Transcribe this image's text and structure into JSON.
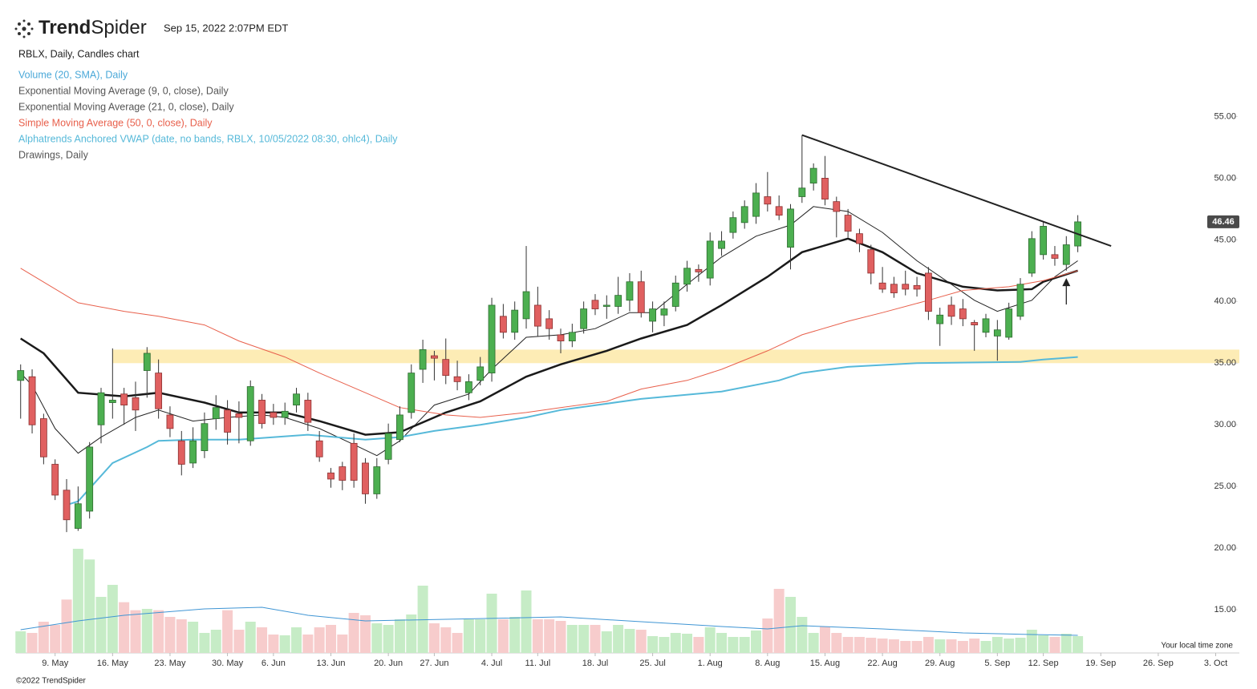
{
  "header": {
    "brand_bold": "Trend",
    "brand_regular": "Spider",
    "timestamp": "Sep 15, 2022 2:07PM EDT",
    "footer": "©2022 TrendSpider"
  },
  "chart_data": {
    "type": "candlestick",
    "subtitle": "RBLX, Daily, Candles chart",
    "timezone_note": "Your local time zone",
    "xlim": [
      -0.4,
      105.5
    ],
    "ylim": [
      11.5,
      63.8
    ],
    "volume_lim": [
      0,
      60
    ],
    "xticks": [
      {
        "value": 3,
        "label": "9. May"
      },
      {
        "value": 8,
        "label": "16. May"
      },
      {
        "value": 13,
        "label": "23. May"
      },
      {
        "value": 18,
        "label": "30. May"
      },
      {
        "value": 22,
        "label": "6. Jun"
      },
      {
        "value": 27,
        "label": "13. Jun"
      },
      {
        "value": 32,
        "label": "20. Jun"
      },
      {
        "value": 36,
        "label": "27. Jun"
      },
      {
        "value": 41,
        "label": "4. Jul"
      },
      {
        "value": 45,
        "label": "11. Jul"
      },
      {
        "value": 50,
        "label": "18. Jul"
      },
      {
        "value": 55,
        "label": "25. Jul"
      },
      {
        "value": 60,
        "label": "1. Aug"
      },
      {
        "value": 65,
        "label": "8. Aug"
      },
      {
        "value": 70,
        "label": "15. Aug"
      },
      {
        "value": 75,
        "label": "22. Aug"
      },
      {
        "value": 80,
        "label": "29. Aug"
      },
      {
        "value": 85,
        "label": "5. Sep"
      },
      {
        "value": 89,
        "label": "12. Sep"
      },
      {
        "value": 94,
        "label": "19. Sep"
      },
      {
        "value": 99,
        "label": "26. Sep"
      },
      {
        "value": 104,
        "label": "3. Oct"
      }
    ],
    "yticks": [
      {
        "value": 55,
        "label": "55.00"
      },
      {
        "value": 50,
        "label": "50.00"
      },
      {
        "value": 45,
        "label": "45.00"
      },
      {
        "value": 40,
        "label": "40.00"
      },
      {
        "value": 35,
        "label": "35.00"
      },
      {
        "value": 30,
        "label": "30.00"
      },
      {
        "value": 25,
        "label": "25.00"
      },
      {
        "value": 20,
        "label": "20.00"
      },
      {
        "value": 15,
        "label": "15.00"
      }
    ],
    "up_color": "#4caf50",
    "down_color": "#e06060",
    "up_volume_color": "#c6ecc6",
    "down_volume_color": "#f7cccc",
    "open": [
      33.6,
      33.9,
      30.5,
      26.8,
      24.7,
      21.6,
      23.0,
      30.0,
      31.8,
      32.5,
      32.2,
      34.4,
      34.2,
      30.8,
      28.7,
      26.9,
      27.9,
      30.5,
      31.2,
      30.9,
      28.7,
      32.0,
      31.0,
      30.6,
      31.6,
      32.0,
      28.7,
      26.1,
      26.6,
      28.5,
      26.9,
      24.4,
      27.2,
      28.8,
      31.0,
      34.5,
      35.6,
      35.3,
      33.9,
      32.6,
      33.6,
      34.2,
      38.8,
      37.5,
      38.6,
      39.7,
      38.6,
      37.3,
      36.8,
      37.8,
      40.1,
      39.6,
      39.6,
      40.1,
      41.6,
      38.4,
      38.9,
      39.6,
      41.4,
      42.6,
      41.9,
      44.3,
      45.6,
      46.4,
      46.9,
      48.5,
      47.7,
      44.4,
      48.5,
      49.6,
      50.0,
      48.1,
      47.0,
      45.5,
      44.2,
      41.5,
      41.4,
      41.4,
      41.3,
      42.3,
      38.2,
      39.7,
      39.4,
      38.3,
      37.5,
      37.2,
      37.1,
      38.8,
      42.3,
      43.8,
      43.8,
      43.0,
      44.5
    ],
    "high": [
      34.9,
      34.5,
      30.9,
      27.2,
      25.6,
      25.0,
      28.6,
      33.0,
      36.2,
      33.0,
      33.5,
      36.3,
      35.3,
      31.5,
      29.5,
      29.8,
      31.0,
      32.4,
      32.0,
      31.9,
      33.6,
      32.5,
      31.7,
      31.8,
      33.0,
      32.6,
      29.5,
      26.5,
      27.0,
      29.3,
      27.3,
      27.3,
      30.1,
      31.5,
      34.9,
      36.9,
      36.0,
      37.0,
      35.2,
      34.1,
      35.5,
      40.3,
      39.8,
      40.0,
      44.5,
      41.2,
      39.3,
      37.8,
      38.2,
      40.0,
      40.6,
      40.5,
      42.0,
      42.3,
      42.5,
      40.0,
      40.0,
      42.1,
      43.3,
      43.0,
      45.6,
      45.7,
      47.3,
      48.2,
      49.6,
      50.5,
      48.6,
      47.9,
      53.5,
      51.2,
      51.8,
      48.5,
      47.5,
      45.9,
      44.6,
      42.8,
      42.0,
      42.5,
      42.0,
      42.8,
      39.5,
      40.4,
      40.2,
      38.5,
      39.0,
      38.5,
      39.9,
      41.9,
      45.7,
      46.5,
      44.5,
      45.3,
      47.0
    ],
    "low": [
      30.5,
      29.3,
      26.8,
      23.9,
      21.3,
      21.4,
      22.4,
      28.5,
      30.5,
      30.0,
      29.5,
      32.2,
      30.5,
      29.0,
      25.9,
      26.5,
      27.3,
      29.6,
      28.4,
      28.5,
      28.3,
      29.7,
      30.0,
      30.0,
      31.0,
      29.5,
      27.0,
      24.9,
      24.7,
      24.9,
      23.6,
      24.0,
      26.8,
      28.6,
      30.5,
      33.4,
      33.6,
      33.3,
      32.8,
      32.0,
      33.2,
      33.5,
      37.0,
      36.9,
      37.8,
      37.2,
      36.9,
      35.8,
      36.3,
      37.4,
      38.9,
      38.6,
      39.0,
      39.2,
      38.7,
      37.5,
      38.0,
      39.2,
      40.8,
      41.6,
      41.3,
      43.7,
      45.1,
      45.9,
      46.3,
      47.3,
      46.6,
      42.6,
      48.0,
      49.0,
      47.8,
      45.2,
      45.2,
      44.0,
      41.4,
      40.7,
      40.3,
      40.5,
      40.4,
      38.5,
      36.4,
      38.1,
      38.0,
      36.0,
      37.1,
      35.2,
      36.9,
      38.5,
      42.0,
      43.4,
      42.9,
      42.5,
      44.0
    ],
    "close": [
      34.4,
      30.0,
      27.4,
      24.3,
      22.3,
      23.6,
      28.2,
      32.6,
      32.0,
      31.6,
      31.2,
      35.8,
      31.3,
      29.7,
      26.8,
      28.7,
      30.1,
      31.4,
      29.4,
      30.6,
      33.1,
      30.1,
      30.6,
      31.1,
      32.5,
      30.2,
      27.4,
      25.6,
      25.5,
      25.5,
      24.4,
      26.6,
      29.3,
      30.8,
      34.2,
      36.1,
      35.4,
      34.0,
      33.5,
      33.5,
      34.7,
      39.7,
      37.5,
      39.3,
      40.8,
      38.0,
      37.8,
      36.8,
      37.5,
      39.4,
      39.4,
      39.7,
      40.5,
      41.6,
      39.1,
      39.4,
      39.4,
      41.5,
      42.7,
      42.4,
      44.9,
      44.9,
      46.8,
      47.7,
      48.8,
      47.9,
      47.0,
      47.5,
      49.2,
      50.8,
      48.3,
      47.3,
      45.7,
      44.7,
      42.3,
      41.0,
      40.7,
      41.0,
      41.0,
      39.2,
      38.9,
      38.8,
      38.6,
      38.1,
      38.6,
      37.7,
      39.4,
      41.4,
      45.1,
      46.1,
      43.5,
      44.6,
      46.46
    ],
    "volume": [
      8.1,
      7.5,
      11.7,
      10.5,
      20,
      39,
      35,
      21,
      25.5,
      19,
      16,
      16.5,
      16,
      13.5,
      12.6,
      11.7,
      7.5,
      8.7,
      16,
      8.7,
      11.7,
      9.6,
      6.9,
      6.6,
      9.6,
      6.9,
      9.6,
      10.5,
      6.9,
      15,
      14.1,
      11.1,
      10.5,
      12.6,
      14.4,
      25.2,
      11.1,
      9.6,
      7.5,
      12.6,
      12.6,
      22.2,
      12.6,
      13.5,
      23.4,
      12.6,
      12.6,
      12,
      10.5,
      10.5,
      10.5,
      8.1,
      10.5,
      9,
      8.7,
      6.3,
      6,
      7.5,
      7.2,
      6,
      9.6,
      7.5,
      6,
      6,
      8.4,
      12.9,
      24,
      21,
      13.5,
      7.5,
      9.9,
      7.5,
      6,
      6,
      5.7,
      5.4,
      5.1,
      4.5,
      4.5,
      6,
      5.1,
      5.1,
      4.5,
      5.4,
      4.5,
      6,
      5.4,
      5.7,
      8.7,
      6.6,
      6,
      7.2,
      6.3
    ],
    "series": [
      {
        "name": "Volume (20, SMA), Daily",
        "color": "#3f95d4",
        "legend_color": "#4aa8d8",
        "axis": "volume",
        "width": 1,
        "x": [
          0,
          5,
          9,
          16,
          21,
          25,
          30,
          37,
          47,
          54,
          61,
          65,
          68,
          75,
          82,
          88,
          92
        ],
        "values": [
          8.7,
          12,
          14.1,
          16.5,
          17.1,
          14.1,
          12,
          12.6,
          13.5,
          11.7,
          9.9,
          9,
          10.2,
          9,
          7.5,
          6.9,
          6.6
        ]
      },
      {
        "name": "Exponential Moving Average (9, 0, close), Daily",
        "color": "#222222",
        "legend_color": "#555555",
        "width": 1,
        "x": [
          0,
          1,
          3,
          5,
          7,
          10,
          12,
          15,
          18,
          21,
          23,
          26,
          29,
          31,
          33,
          36,
          39,
          41,
          44,
          47,
          50,
          53,
          55,
          58,
          61,
          64,
          67,
          69,
          72,
          75,
          78,
          81,
          83,
          85,
          88,
          90,
          92
        ],
        "values": [
          34.2,
          33.2,
          29.7,
          27.7,
          29.0,
          30.6,
          31.2,
          30.3,
          30.6,
          30.8,
          30.6,
          29.7,
          28.4,
          27.5,
          28.7,
          31.6,
          32.5,
          34.5,
          37.1,
          37.3,
          37.8,
          39.1,
          39.1,
          41.4,
          43.6,
          45.3,
          46.2,
          47.7,
          47.3,
          45.6,
          43.3,
          41.4,
          40.1,
          39.2,
          40.1,
          42.0,
          43.3
        ]
      },
      {
        "name": "Exponential Moving Average (21, 0, close), Daily",
        "color": "#1a1a1a",
        "legend_color": "#555555",
        "width": 2.5,
        "x": [
          0,
          2,
          5,
          9,
          12,
          16,
          19,
          23,
          26,
          30,
          33,
          37,
          40,
          44,
          47,
          51,
          54,
          58,
          61,
          65,
          68,
          72,
          75,
          78,
          82,
          85,
          88,
          89,
          92
        ],
        "values": [
          37.0,
          35.8,
          32.6,
          32.3,
          32.6,
          31.8,
          31.0,
          31.0,
          30.3,
          29.2,
          29.4,
          31.0,
          31.9,
          33.9,
          34.9,
          36.0,
          37.0,
          38.1,
          39.7,
          42.0,
          44.0,
          45.1,
          44.0,
          42.3,
          41.2,
          40.9,
          41.0,
          41.6,
          42.5
        ]
      },
      {
        "name": "Simple Moving Average (50, 0, close), Daily",
        "color": "#e8604c",
        "legend_color": "#e8604c",
        "width": 1,
        "x": [
          0,
          5,
          9,
          12,
          16,
          19,
          23,
          26,
          30,
          33,
          37,
          40,
          44,
          47,
          51,
          54,
          58,
          61,
          65,
          68,
          72,
          75,
          79,
          82,
          86,
          89,
          92
        ],
        "values": [
          42.7,
          39.9,
          39.2,
          38.8,
          38.1,
          36.8,
          35.5,
          34.2,
          32.6,
          31.4,
          30.8,
          30.6,
          31.0,
          31.4,
          31.9,
          32.9,
          33.6,
          34.5,
          36.0,
          37.3,
          38.4,
          39.1,
          40.1,
          40.9,
          41.2,
          41.7,
          42.5
        ]
      },
      {
        "name": "Alphatrends Anchored VWAP (date, no bands, RBLX, 10/05/2022 08:30, ohlc4), Daily",
        "color": "#56b9d9",
        "legend_color": "#56b9d9",
        "width": 2,
        "x": [
          4,
          5,
          8,
          11,
          12,
          15,
          19,
          25,
          30,
          33,
          36,
          40,
          44,
          47,
          54,
          61,
          66,
          68,
          72,
          78,
          87,
          89,
          92
        ],
        "values": [
          23.5,
          23.8,
          26.9,
          28.2,
          28.7,
          28.8,
          28.8,
          29.2,
          28.8,
          29.0,
          29.5,
          30.0,
          30.6,
          31.2,
          32.1,
          32.7,
          33.6,
          34.2,
          34.7,
          35.0,
          35.1,
          35.3,
          35.5
        ]
      }
    ],
    "drawings": {
      "name": "Drawings, Daily",
      "legend_color": "#555555",
      "trendline": {
        "x": [
          68,
          94.9
        ],
        "values": [
          53.5,
          44.5
        ],
        "color": "#222222"
      },
      "zone": {
        "x_start": 8,
        "low": 35.0,
        "high": 36.1,
        "color": "#fde9a8"
      },
      "arrow": {
        "x": 91,
        "value": 41.9,
        "color": "#222222"
      }
    }
  }
}
